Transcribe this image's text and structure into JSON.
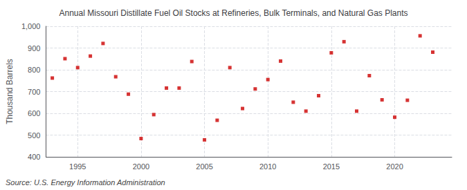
{
  "chart_data": {
    "type": "scatter",
    "title": "Annual Missouri Distillate Fuel Oil Stocks at Refineries, Bulk Terminals, and Natural Gas Plants",
    "ylabel": "Thousand Barrels",
    "source": "Source: U.S. Energy Information Administration",
    "x": [
      1993,
      1994,
      1995,
      1996,
      1997,
      1998,
      1999,
      2000,
      2001,
      2002,
      2003,
      2004,
      2005,
      2006,
      2007,
      2008,
      2009,
      2010,
      2011,
      2012,
      2013,
      2014,
      2015,
      2016,
      2017,
      2018,
      2019,
      2020,
      2021,
      2022,
      2023
    ],
    "values": [
      762,
      851,
      810,
      863,
      921,
      768,
      688,
      484,
      594,
      716,
      716,
      838,
      478,
      568,
      810,
      622,
      712,
      755,
      840,
      651,
      610,
      681,
      878,
      929,
      610,
      773,
      662,
      582,
      660,
      956,
      881
    ],
    "color": "#cc0000",
    "marker": "square",
    "xlim": [
      1992.5,
      2024.5
    ],
    "xticks": [
      1995,
      2000,
      2005,
      2010,
      2015,
      2020
    ],
    "ylim": [
      400,
      1000
    ],
    "yticks": [
      400,
      500,
      600,
      700,
      800,
      900,
      {
        "value": 1000,
        "label": "1,000"
      }
    ],
    "grid": true
  }
}
